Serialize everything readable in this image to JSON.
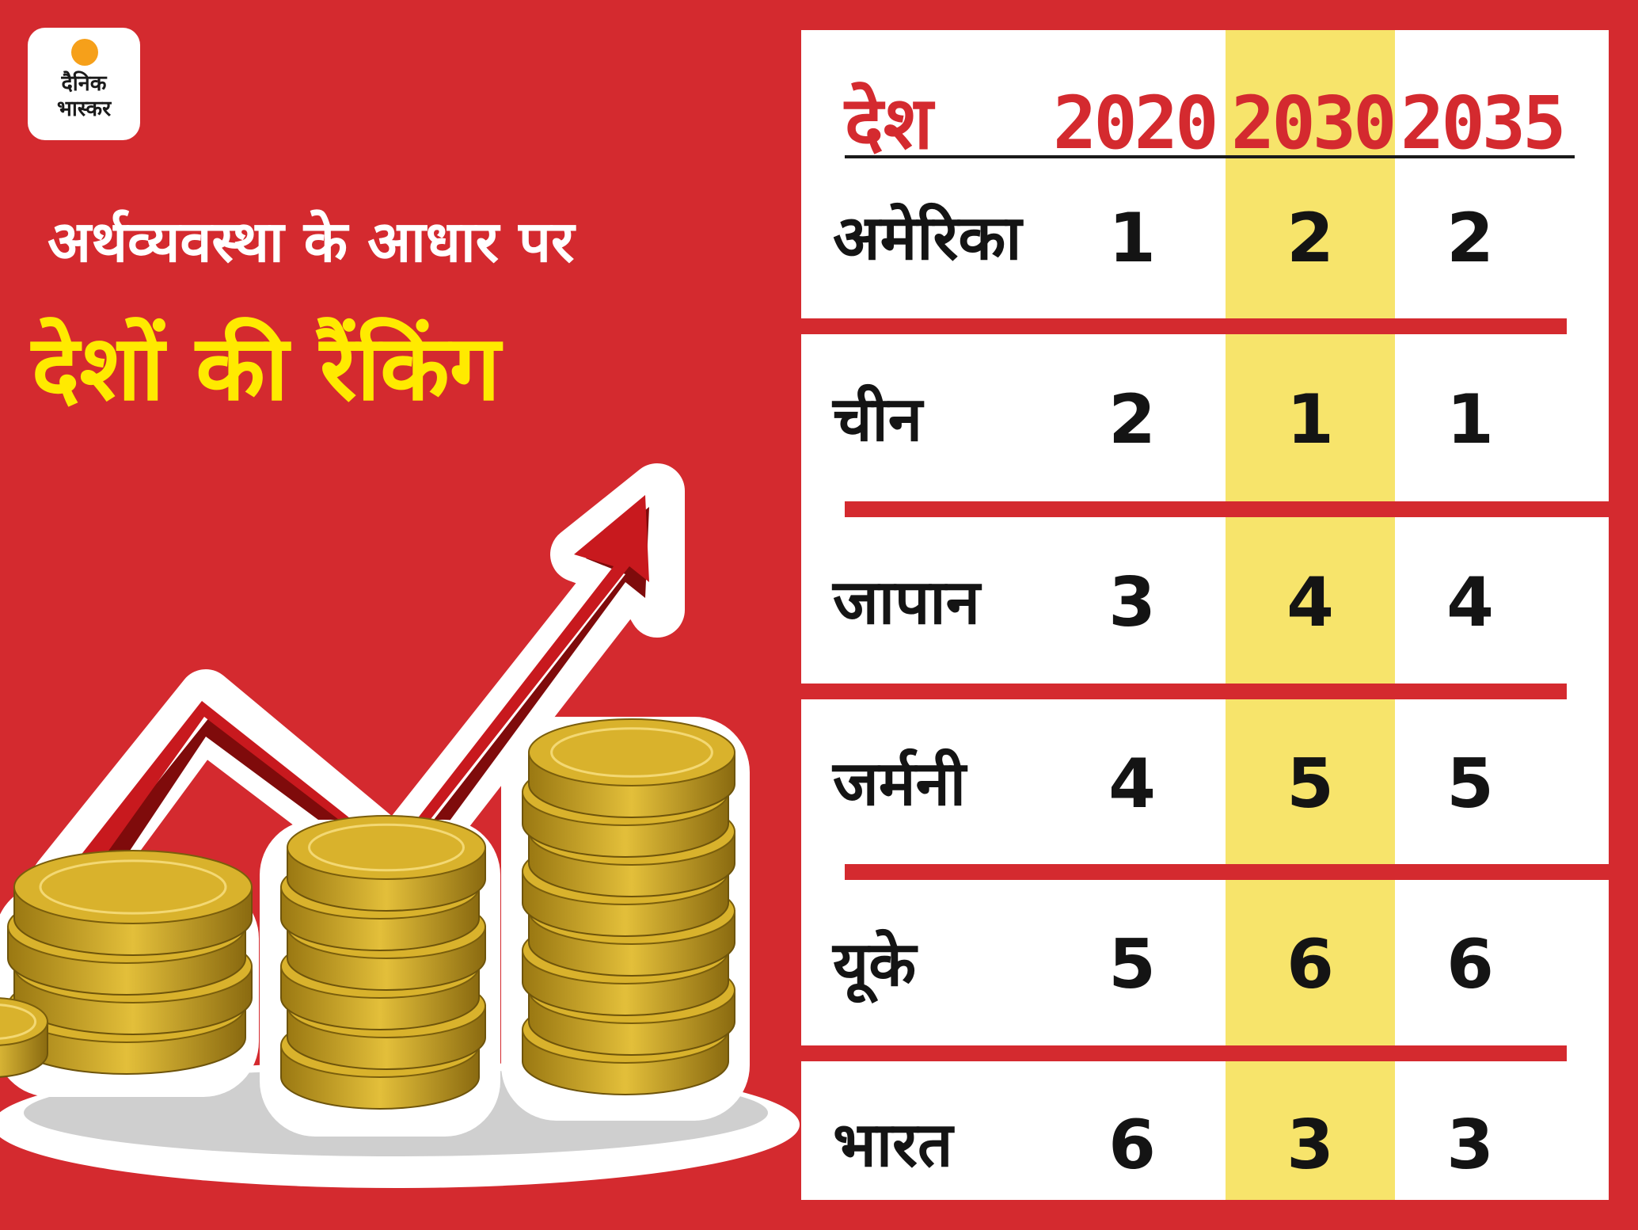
{
  "logo": {
    "line1": "दैनिक",
    "line2": "भास्कर"
  },
  "headline": {
    "line1": "अर्थव्यवस्था के आधार पर",
    "line2": "देशों की रैंकिंग"
  },
  "colors": {
    "background_red": "#d42a2f",
    "highlight_yellow": "#f7e46b",
    "headline_yellow": "#ffea00",
    "coin_gold": "#d9b22c"
  },
  "chart_data": {
    "type": "table",
    "headers": [
      "देश",
      "2020",
      "2030",
      "2035"
    ],
    "highlighted_column": "2030",
    "rows": [
      {
        "country": "अमेरिका",
        "values": [
          "1",
          "2",
          "2"
        ]
      },
      {
        "country": "चीन",
        "values": [
          "2",
          "1",
          "1"
        ]
      },
      {
        "country": "जापान",
        "values": [
          "3",
          "4",
          "4"
        ]
      },
      {
        "country": "जर्मनी",
        "values": [
          "4",
          "5",
          "5"
        ]
      },
      {
        "country": "यूके",
        "values": [
          "5",
          "6",
          "6"
        ]
      },
      {
        "country": "भारत",
        "values": [
          "6",
          "3",
          "3"
        ]
      }
    ]
  }
}
